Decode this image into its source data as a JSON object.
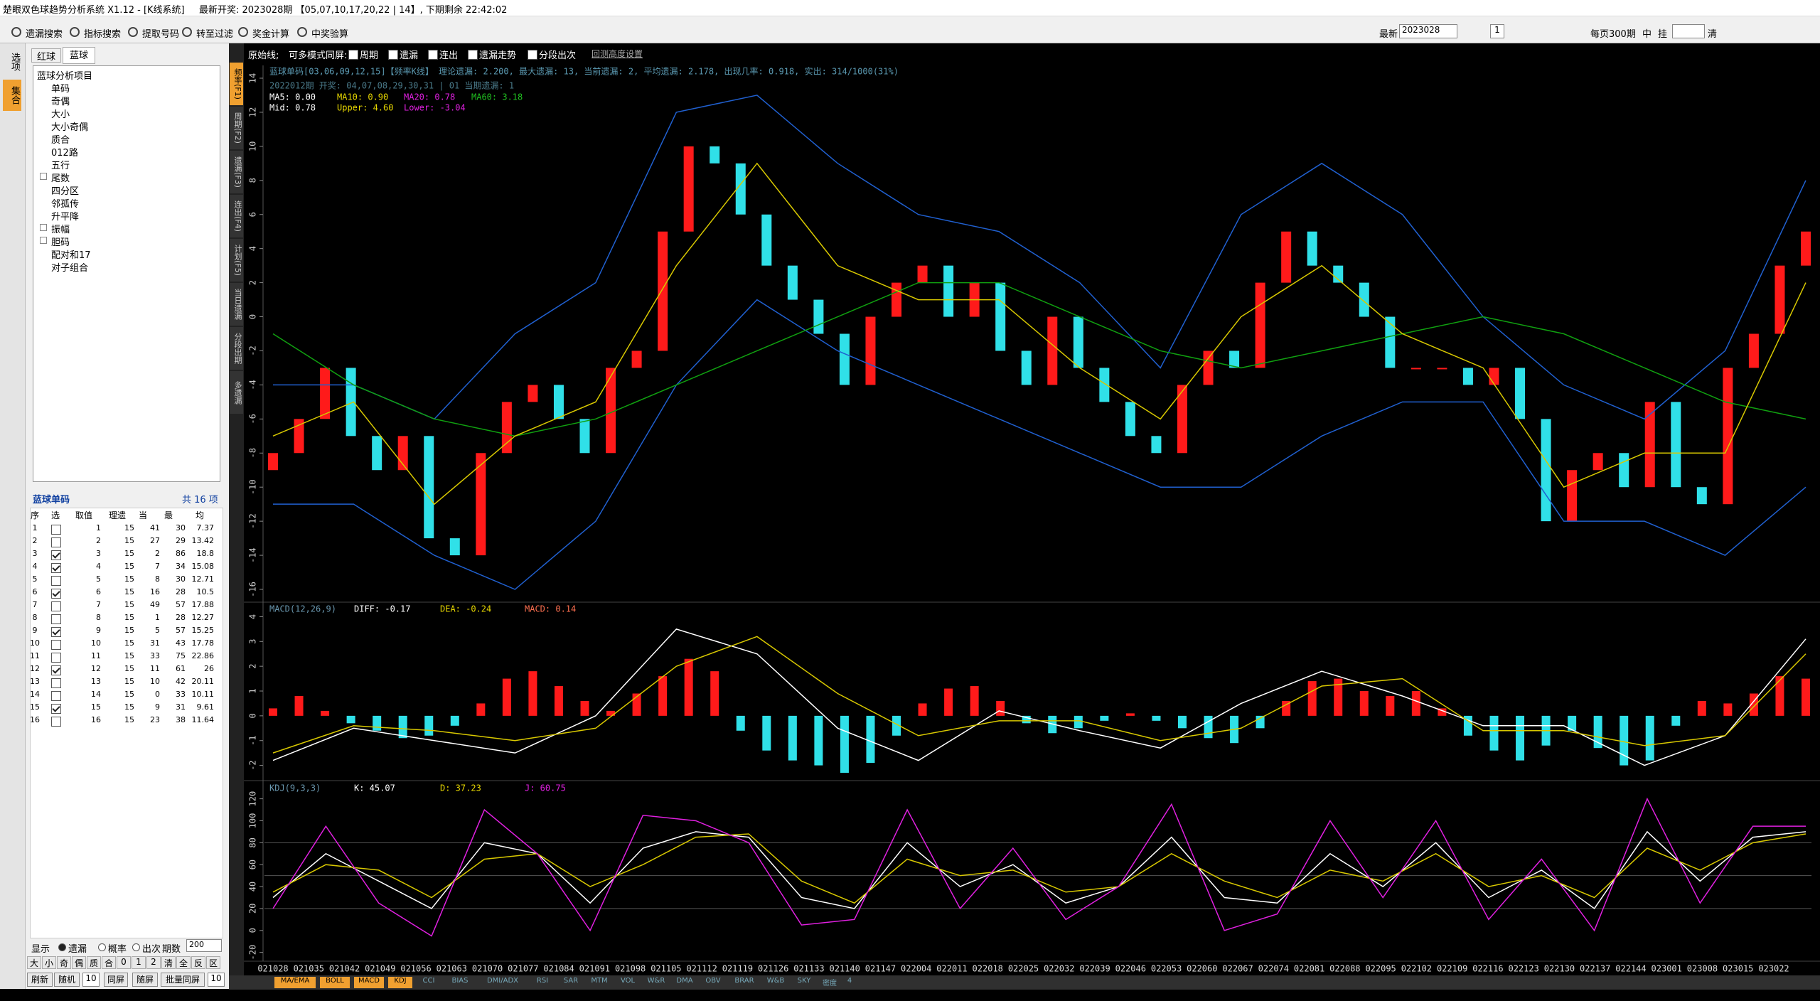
{
  "title_bar": {
    "app": "楚眼双色球趋势分析系统 X1.12 - [K线系统]",
    "latest": "最新开奖: 2023028期 【05,07,10,17,20,22 | 14】, 下期剩余 22:42:02"
  },
  "toolbar": {
    "buttons": [
      "遗漏搜索",
      "指标搜索",
      "提取号码",
      "转至过滤",
      "奖金计算",
      "中奖验算"
    ],
    "latest_label": "最新",
    "issue": "2023028",
    "page": "1",
    "per_page": "每页300期",
    "mid": "中",
    "hang": "挂",
    "clear": "清"
  },
  "side_tabs": [
    "选项",
    "集合"
  ],
  "left_panel": {
    "tabs": [
      "红球",
      "蓝球"
    ],
    "tree_root": "蓝球分析项目",
    "tree": [
      {
        "label": "单码"
      },
      {
        "label": "奇偶"
      },
      {
        "label": "大小"
      },
      {
        "label": "大小奇偶"
      },
      {
        "label": "质合"
      },
      {
        "label": "012路"
      },
      {
        "label": "五行"
      },
      {
        "label": "尾数",
        "expand": true
      },
      {
        "label": "四分区"
      },
      {
        "label": "邻孤传"
      },
      {
        "label": "升平降"
      },
      {
        "label": "振幅",
        "expand": true
      },
      {
        "label": "胆码",
        "expand": true
      },
      {
        "label": "配对和17"
      },
      {
        "label": "对子组合"
      }
    ],
    "table_title": "蓝球单码",
    "table_count": "共 16 项",
    "columns": [
      "序",
      "选",
      "取值",
      "理遗",
      "当",
      "最",
      "均"
    ],
    "rows": [
      [
        1,
        false,
        1,
        15,
        41,
        30,
        7.37
      ],
      [
        2,
        false,
        2,
        15,
        27,
        29,
        13.42
      ],
      [
        3,
        true,
        3,
        15,
        2,
        86,
        18.8
      ],
      [
        4,
        true,
        4,
        15,
        7,
        34,
        15.08
      ],
      [
        5,
        false,
        5,
        15,
        8,
        30,
        12.71
      ],
      [
        6,
        true,
        6,
        15,
        16,
        28,
        10.5
      ],
      [
        7,
        false,
        7,
        15,
        49,
        57,
        17.88
      ],
      [
        8,
        false,
        8,
        15,
        1,
        28,
        12.27
      ],
      [
        9,
        true,
        9,
        15,
        5,
        57,
        15.25
      ],
      [
        10,
        false,
        10,
        15,
        31,
        43,
        17.78
      ],
      [
        11,
        false,
        11,
        15,
        33,
        75,
        22.86
      ],
      [
        12,
        true,
        12,
        15,
        11,
        61,
        26
      ],
      [
        13,
        false,
        13,
        15,
        10,
        42,
        20.11
      ],
      [
        14,
        false,
        14,
        15,
        0,
        33,
        10.11
      ],
      [
        15,
        true,
        15,
        15,
        9,
        31,
        9.61
      ],
      [
        16,
        false,
        16,
        15,
        23,
        38,
        11.64
      ]
    ],
    "display_label": "显示",
    "options": [
      "遗漏",
      "概率",
      "出次"
    ],
    "period_label": "期数",
    "period": "200",
    "filters": [
      "大",
      "小",
      "奇",
      "偶",
      "质",
      "合",
      "0",
      "1",
      "2",
      "清",
      "全",
      "反",
      "区"
    ],
    "buttons": [
      "刷新",
      "随机",
      "10",
      "同屏",
      "随屏",
      "批量同屏",
      "10"
    ]
  },
  "chart": {
    "header": {
      "raw": "原始线;",
      "multi": "可多模式同屏:",
      "checks": [
        "周期",
        "遗漏",
        "连出",
        "遗漏走势",
        "分段出次"
      ],
      "link": "回测高度设置"
    },
    "tabs": [
      "频率(F1)",
      "周期(F2)",
      "遗漏(F3)",
      "连出(F4)",
      "计划(F5)",
      "当日遗漏",
      "分段出期",
      "多遗漏"
    ],
    "info": "蓝球单码[03,06,09,12,15]【频率K线】 理论遗漏: 2.200, 最大遗漏: 13, 当前遗漏: 2, 平均遗漏: 2.178, 出现几率: 0.918, 实出: 314/1000(31%)",
    "issue_info": "2022012期 开奖: 04,07,08,29,30,31 | 01 当期遗漏: 1",
    "ma_labels": [
      {
        "text": "MA5: 0.00",
        "color": "#ffffff"
      },
      {
        "text": "MA10: 0.90",
        "color": "#e8d800"
      },
      {
        "text": "MA20: 0.78",
        "color": "#e020e0"
      },
      {
        "text": "MA60: 3.18",
        "color": "#20c020"
      }
    ],
    "boll_labels": [
      {
        "text": "Mid: 0.78",
        "color": "#ffffff"
      },
      {
        "text": "Upper: 4.60",
        "color": "#e8d800"
      },
      {
        "text": "Lower: -3.04",
        "color": "#e020e0"
      }
    ],
    "price": {
      "ylim": [
        -16.5,
        14.5
      ],
      "yticks": [
        14,
        12,
        10,
        8,
        6,
        4,
        2,
        0,
        -2,
        -4,
        -6,
        -8,
        -10,
        -12,
        -14,
        -16
      ],
      "up_color": "#ff1a1a",
      "down_color": "#30e0e8",
      "open": [
        -9,
        -8,
        -6,
        -3,
        -7,
        -9,
        -7,
        -13,
        -14,
        -8,
        -5,
        -4,
        -6,
        -8,
        -3,
        -2,
        5,
        10,
        9,
        6,
        3,
        1,
        -1,
        -4,
        0,
        2,
        3,
        0,
        2,
        -2,
        -4,
        0,
        -3,
        -5,
        -7,
        -8,
        -4,
        -2,
        -3,
        2,
        5,
        3,
        2,
        0,
        -3,
        -3,
        -3,
        -4,
        -3,
        -6,
        -12,
        -9,
        -8,
        -10,
        -5,
        -10,
        -11,
        -3,
        -1,
        3
      ],
      "close": [
        -8,
        -6,
        -3,
        -7,
        -9,
        -7,
        -13,
        -14,
        -8,
        -5,
        -4,
        -6,
        -8,
        -3,
        -2,
        5,
        10,
        9,
        6,
        3,
        1,
        -1,
        -4,
        0,
        2,
        3,
        0,
        2,
        -2,
        -4,
        0,
        -3,
        -5,
        -7,
        -8,
        -4,
        -2,
        -3,
        2,
        5,
        3,
        2,
        0,
        -3,
        -3,
        -3,
        -4,
        -3,
        -6,
        -12,
        -9,
        -8,
        -10,
        -5,
        -10,
        -11,
        -3,
        -1,
        3,
        5
      ],
      "lines": [
        {
          "color": "#2060d0",
          "values": [
            -4,
            -4,
            -6,
            -1,
            2,
            12,
            13,
            9,
            6,
            5,
            2,
            -3,
            6,
            9,
            6,
            0,
            -4,
            -6,
            -2,
            8
          ]
        },
        {
          "color": "#2060d0",
          "values": [
            -11,
            -11,
            -14,
            -16,
            -12,
            -4,
            1,
            -2,
            -4,
            -6,
            -8,
            -10,
            -10,
            -7,
            -5,
            -5,
            -12,
            -12,
            -14,
            -10
          ]
        },
        {
          "color": "#10a010",
          "values": [
            -1,
            -4,
            -6,
            -7,
            -6,
            -4,
            -2,
            0,
            2,
            2,
            0,
            -2,
            -3,
            -2,
            -1,
            0,
            -1,
            -3,
            -5,
            -6
          ]
        },
        {
          "color": "#d8c800",
          "values": [
            -7,
            -5,
            -11,
            -7,
            -5,
            3,
            9,
            3,
            1,
            1,
            -3,
            -6,
            0,
            3,
            -1,
            -3,
            -10,
            -8,
            -8,
            2
          ]
        }
      ]
    },
    "macd": {
      "title": "MACD(12,26,9)",
      "labels": [
        {
          "text": "DIFF: -0.17",
          "color": "#ffffff"
        },
        {
          "text": "DEA: -0.24",
          "color": "#e8d800"
        },
        {
          "text": "MACD: 0.14",
          "color": "#ff7050"
        }
      ],
      "ylim": [
        -2.5,
        4.3
      ],
      "yticks": [
        4,
        3,
        2,
        1,
        0,
        -1,
        -2
      ],
      "histogram": [
        0.3,
        0.8,
        0.2,
        -0.3,
        -0.6,
        -0.9,
        -0.8,
        -0.4,
        0.5,
        1.5,
        1.8,
        1.2,
        0.6,
        0.2,
        0.9,
        1.6,
        2.3,
        1.8,
        -0.6,
        -1.4,
        -1.8,
        -2.0,
        -2.3,
        -1.9,
        -0.8,
        0.5,
        1.1,
        1.2,
        0.6,
        -0.3,
        -0.7,
        -0.5,
        -0.2,
        0.1,
        -0.2,
        -0.5,
        -0.9,
        -1.1,
        -0.5,
        0.6,
        1.4,
        1.5,
        1.0,
        0.8,
        1.0,
        0.3,
        -0.8,
        -1.4,
        -1.8,
        -1.2,
        -0.6,
        -1.3,
        -2.0,
        -1.8,
        -0.4,
        0.6,
        0.5,
        0.9,
        1.6,
        1.5
      ],
      "lines": [
        {
          "color": "#ffffff",
          "values": [
            -1.8,
            -0.5,
            -1.0,
            -1.5,
            0.0,
            3.5,
            2.5,
            -0.5,
            -1.8,
            0.2,
            -0.6,
            -1.3,
            0.5,
            1.8,
            0.8,
            -0.4,
            -0.4,
            -2.0,
            -0.8,
            3.1
          ]
        },
        {
          "color": "#d8c800",
          "values": [
            -1.5,
            -0.4,
            -0.6,
            -1.0,
            -0.5,
            2.0,
            3.2,
            0.9,
            -0.8,
            -0.2,
            -0.2,
            -1.0,
            -0.5,
            1.2,
            1.5,
            -0.6,
            -0.6,
            -1.2,
            -0.8,
            2.5
          ]
        }
      ]
    },
    "kdj": {
      "title": "KDJ(9,3,3)",
      "labels": [
        {
          "text": "K: 45.07",
          "color": "#ffffff"
        },
        {
          "text": "D: 37.23",
          "color": "#e8d800"
        },
        {
          "text": "J: 60.75",
          "color": "#e020e0"
        }
      ],
      "ylim": [
        -28,
        134
      ],
      "yticks": [
        120,
        100,
        80,
        60,
        40,
        20,
        0,
        -20
      ],
      "reference_lines": [
        80,
        50,
        20
      ],
      "lines": [
        {
          "color": "#ffffff",
          "values": [
            30,
            70,
            45,
            20,
            80,
            70,
            25,
            75,
            90,
            85,
            30,
            20,
            80,
            40,
            60,
            25,
            40,
            85,
            30,
            25,
            70,
            40,
            80,
            30,
            55,
            20,
            90,
            45,
            85,
            90
          ]
        },
        {
          "color": "#d8c800",
          "values": [
            35,
            60,
            55,
            30,
            65,
            70,
            40,
            60,
            85,
            88,
            45,
            25,
            65,
            50,
            55,
            35,
            40,
            70,
            45,
            30,
            55,
            45,
            70,
            40,
            50,
            30,
            75,
            55,
            80,
            88
          ]
        },
        {
          "color": "#e020e0",
          "values": [
            20,
            95,
            25,
            -5,
            110,
            70,
            0,
            105,
            100,
            80,
            5,
            10,
            110,
            20,
            75,
            10,
            40,
            115,
            0,
            15,
            100,
            30,
            100,
            10,
            65,
            0,
            120,
            25,
            95,
            95
          ]
        }
      ]
    },
    "xlabels": [
      "021028",
      "021035",
      "021042",
      "021049",
      "021056",
      "021063",
      "021070",
      "021077",
      "021084",
      "021091",
      "021098",
      "021105",
      "021112",
      "021119",
      "021126",
      "021133",
      "021140",
      "021147",
      "022004",
      "022011",
      "022018",
      "022025",
      "022032",
      "022039",
      "022046",
      "022053",
      "022060",
      "022067",
      "022074",
      "022081",
      "022088",
      "022095",
      "022102",
      "022109",
      "022116",
      "022123",
      "022130",
      "022137",
      "022144",
      "023001",
      "023008",
      "023015",
      "023022"
    ],
    "bottom_tabs": [
      "MA/EMA",
      "BOLL",
      "MACD",
      "KDJ",
      "CCI",
      "BIAS",
      "DMI/ADX",
      "RSI",
      "SAR",
      "MTM",
      "VOL",
      "W&R",
      "DMA",
      "OBV",
      "BRAR",
      "W&B",
      "SKY",
      "密度",
      "4"
    ]
  }
}
